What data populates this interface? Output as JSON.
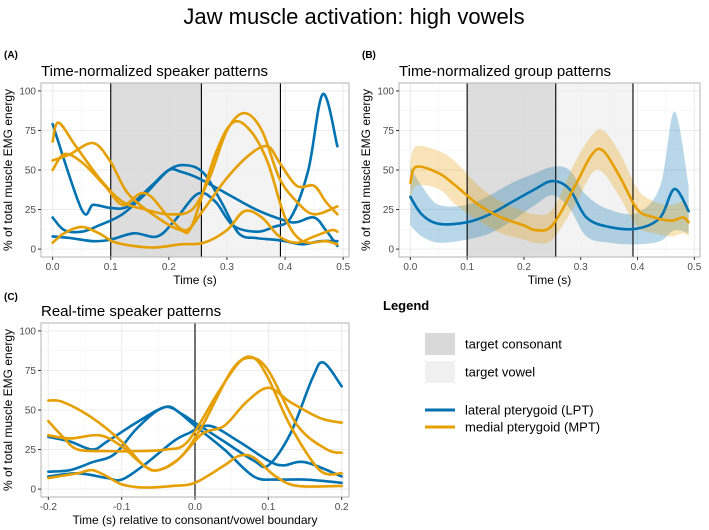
{
  "title": "Jaw muscle activation: high vowels",
  "colors": {
    "lpt": "#0072B2",
    "mpt": "#E69F00",
    "consonant": "#d9d9d9",
    "vowel": "#f0f0f0"
  },
  "legend": {
    "heading": "Legend",
    "items": [
      {
        "label": "target consonant",
        "kind": "fill",
        "color": "#d9d9d9"
      },
      {
        "label": "target vowel",
        "kind": "fill",
        "color": "#f0f0f0"
      },
      {
        "label": "lateral pterygoid (LPT)",
        "kind": "line",
        "color": "#0072B2"
      },
      {
        "label": "medial pterygoid (MPT)",
        "kind": "line",
        "color": "#E69F00"
      }
    ]
  },
  "chart_data": [
    {
      "tag": "(A)",
      "title": "Time-normalized speaker patterns",
      "type": "line",
      "xlabel": "Time (s)",
      "ylabel": "% of total muscle EMG energy",
      "xlim": [
        -0.02,
        0.51
      ],
      "ylim": [
        -5,
        105
      ],
      "xticks": [
        0,
        0.1,
        0.2,
        0.3,
        0.4,
        0.5
      ],
      "xtick_labels": [
        "0.0",
        "0.1",
        "0.2",
        "0.3",
        "0.4",
        "0.5"
      ],
      "yticks": [
        0,
        25,
        50,
        75,
        100
      ],
      "ytick_labels": [
        "0",
        "25",
        "50",
        "75",
        "100"
      ],
      "regions": [
        {
          "name": "target consonant",
          "from": 0.1,
          "to": 0.256
        },
        {
          "name": "target vowel",
          "from": 0.256,
          "to": 0.392
        }
      ],
      "vlines": [
        0.1,
        0.256,
        0.392
      ],
      "series": [
        {
          "muscle": "lpt",
          "x": [
            0,
            0.05,
            0.07,
            0.1,
            0.13,
            0.17,
            0.2,
            0.22,
            0.25,
            0.3,
            0.35,
            0.4,
            0.42,
            0.45,
            0.47,
            0.49
          ],
          "y": [
            79,
            25,
            28,
            26,
            27,
            40,
            50,
            49,
            45,
            35,
            25,
            18,
            17,
            20,
            12,
            2
          ]
        },
        {
          "muscle": "lpt",
          "x": [
            0,
            0.02,
            0.05,
            0.08,
            0.12,
            0.16,
            0.2,
            0.23,
            0.26,
            0.29,
            0.32,
            0.35,
            0.38,
            0.4,
            0.43,
            0.46,
            0.49
          ],
          "y": [
            20,
            12,
            11,
            15,
            22,
            35,
            50,
            53,
            48,
            30,
            10,
            7,
            6,
            5,
            3,
            5,
            5
          ]
        },
        {
          "muscle": "lpt",
          "x": [
            0,
            0.03,
            0.07,
            0.1,
            0.14,
            0.18,
            0.21,
            0.25,
            0.28,
            0.31,
            0.35,
            0.38,
            0.41,
            0.44,
            0.465,
            0.49
          ],
          "y": [
            8,
            7,
            5,
            6,
            10,
            8,
            18,
            35,
            30,
            15,
            11,
            14,
            20,
            50,
            98,
            65
          ]
        },
        {
          "muscle": "mpt",
          "x": [
            0,
            0.01,
            0.04,
            0.08,
            0.12,
            0.16,
            0.2,
            0.24,
            0.27,
            0.3,
            0.33,
            0.36,
            0.39,
            0.42,
            0.45,
            0.49
          ],
          "y": [
            68,
            80,
            65,
            45,
            30,
            25,
            22,
            25,
            45,
            75,
            86,
            75,
            45,
            30,
            22,
            27
          ]
        },
        {
          "muscle": "mpt",
          "x": [
            0,
            0.03,
            0.07,
            0.1,
            0.13,
            0.18,
            0.22,
            0.24,
            0.28,
            0.31,
            0.34,
            0.37,
            0.4,
            0.43,
            0.47,
            0.49
          ],
          "y": [
            56,
            60,
            67,
            55,
            35,
            20,
            12,
            15,
            60,
            80,
            75,
            55,
            20,
            5,
            5,
            3
          ]
        },
        {
          "muscle": "mpt",
          "x": [
            0,
            0.02,
            0.05,
            0.09,
            0.12,
            0.15,
            0.17,
            0.2,
            0.23,
            0.26,
            0.3,
            0.34,
            0.37,
            0.39,
            0.42,
            0.45,
            0.47,
            0.49
          ],
          "y": [
            50,
            60,
            55,
            40,
            28,
            35,
            33,
            20,
            12,
            25,
            45,
            60,
            65,
            55,
            40,
            40,
            30,
            22
          ]
        },
        {
          "muscle": "mpt",
          "x": [
            0,
            0.02,
            0.05,
            0.08,
            0.11,
            0.17,
            0.22,
            0.26,
            0.3,
            0.33,
            0.36,
            0.39,
            0.42,
            0.45,
            0.48,
            0.49
          ],
          "y": [
            4,
            10,
            14,
            10,
            4,
            1,
            3,
            4,
            12,
            24,
            20,
            8,
            4,
            8,
            12,
            11
          ]
        }
      ]
    },
    {
      "tag": "(B)",
      "title": "Time-normalized group patterns",
      "type": "line",
      "xlabel": "Time (s)",
      "ylabel": "% of total muscle EMG energy",
      "xlim": [
        -0.02,
        0.51
      ],
      "ylim": [
        -5,
        105
      ],
      "xticks": [
        0,
        0.1,
        0.2,
        0.3,
        0.4,
        0.5
      ],
      "xtick_labels": [
        "0.0",
        "0.1",
        "0.2",
        "0.3",
        "0.4",
        "0.5"
      ],
      "yticks": [
        0,
        25,
        50,
        75,
        100
      ],
      "ytick_labels": [
        "0",
        "25",
        "50",
        "75",
        "100"
      ],
      "regions": [
        {
          "name": "target consonant",
          "from": 0.1,
          "to": 0.256
        },
        {
          "name": "target vowel",
          "from": 0.256,
          "to": 0.392
        }
      ],
      "vlines": [
        0.1,
        0.256,
        0.392
      ],
      "series": [
        {
          "muscle": "lpt",
          "x": [
            0,
            0.02,
            0.05,
            0.1,
            0.14,
            0.18,
            0.22,
            0.25,
            0.28,
            0.31,
            0.35,
            0.4,
            0.44,
            0.465,
            0.49
          ],
          "y": [
            33,
            22,
            16,
            17,
            22,
            30,
            38,
            43,
            38,
            20,
            14,
            13,
            20,
            38,
            24
          ],
          "lower": [
            15,
            8,
            4,
            6,
            10,
            18,
            28,
            34,
            26,
            8,
            4,
            3,
            5,
            12,
            10
          ],
          "upper": [
            52,
            40,
            28,
            28,
            34,
            42,
            48,
            52,
            50,
            34,
            25,
            23,
            40,
            87,
            40
          ]
        },
        {
          "muscle": "mpt",
          "x": [
            0,
            0.01,
            0.05,
            0.08,
            0.12,
            0.16,
            0.2,
            0.22,
            0.25,
            0.29,
            0.32,
            0.34,
            0.37,
            0.4,
            0.43,
            0.46,
            0.48,
            0.49
          ],
          "y": [
            42,
            52,
            48,
            40,
            28,
            20,
            15,
            12,
            15,
            40,
            60,
            62,
            45,
            25,
            20,
            18,
            20,
            17
          ],
          "lower": [
            30,
            40,
            38,
            28,
            18,
            10,
            6,
            4,
            6,
            28,
            48,
            48,
            32,
            14,
            10,
            8,
            10,
            8
          ],
          "upper": [
            55,
            65,
            62,
            55,
            40,
            30,
            24,
            22,
            25,
            55,
            72,
            75,
            60,
            38,
            30,
            28,
            30,
            27
          ]
        }
      ]
    },
    {
      "tag": "(C)",
      "title": "Real-time speaker patterns",
      "type": "line",
      "xlabel": "Time (s) relative to consonant/vowel boundary",
      "ylabel": "% of total muscle EMG energy",
      "xlim": [
        -0.21,
        0.21
      ],
      "ylim": [
        -5,
        105
      ],
      "xticks": [
        -0.2,
        -0.1,
        0,
        0.1,
        0.2
      ],
      "xtick_labels": [
        "-0.2",
        "-0.1",
        "0.0",
        "0.1",
        "0.2"
      ],
      "yticks": [
        0,
        25,
        50,
        75,
        100
      ],
      "ytick_labels": [
        "0",
        "25",
        "50",
        "75",
        "100"
      ],
      "regions": [],
      "vlines": [
        0
      ],
      "series": [
        {
          "muscle": "lpt",
          "x": [
            -0.2,
            -0.17,
            -0.14,
            -0.12,
            -0.08,
            -0.04,
            -0.02,
            0,
            0.04,
            0.08,
            0.1,
            0.13,
            0.16,
            0.175,
            0.2
          ],
          "y": [
            33,
            30,
            25,
            30,
            42,
            52,
            48,
            42,
            30,
            18,
            15,
            35,
            70,
            80,
            65
          ]
        },
        {
          "muscle": "lpt",
          "x": [
            -0.2,
            -0.17,
            -0.14,
            -0.11,
            -0.08,
            -0.05,
            -0.03,
            0,
            0.04,
            0.08,
            0.11,
            0.15,
            0.2
          ],
          "y": [
            11,
            12,
            17,
            22,
            38,
            50,
            51,
            40,
            25,
            8,
            6,
            6,
            4
          ]
        },
        {
          "muscle": "lpt",
          "x": [
            -0.2,
            -0.16,
            -0.12,
            -0.1,
            -0.07,
            -0.03,
            -0.01,
            0.02,
            0.06,
            0.1,
            0.12,
            0.15,
            0.2
          ],
          "y": [
            8,
            10,
            7,
            6,
            15,
            30,
            35,
            40,
            30,
            18,
            15,
            17,
            8
          ]
        },
        {
          "muscle": "mpt",
          "x": [
            -0.2,
            -0.18,
            -0.14,
            -0.1,
            -0.07,
            -0.05,
            -0.02,
            0.01,
            0.05,
            0.075,
            0.1,
            0.14,
            0.18,
            0.2
          ],
          "y": [
            56,
            55,
            45,
            30,
            15,
            12,
            20,
            40,
            75,
            83,
            75,
            40,
            25,
            23
          ]
        },
        {
          "muscle": "mpt",
          "x": [
            -0.2,
            -0.18,
            -0.16,
            -0.12,
            -0.08,
            -0.04,
            -0.01,
            0.03,
            0.06,
            0.08,
            0.1,
            0.13,
            0.17,
            0.2
          ],
          "y": [
            43,
            33,
            25,
            24,
            24,
            25,
            30,
            60,
            80,
            83,
            70,
            40,
            12,
            10
          ]
        },
        {
          "muscle": "mpt",
          "x": [
            -0.2,
            -0.17,
            -0.13,
            -0.1,
            -0.07,
            -0.05,
            -0.02,
            0.01,
            0.04,
            0.07,
            0.1,
            0.13,
            0.17,
            0.2
          ],
          "y": [
            34,
            32,
            34,
            27,
            15,
            12,
            20,
            35,
            40,
            55,
            64,
            55,
            45,
            42
          ]
        },
        {
          "muscle": "mpt",
          "x": [
            -0.2,
            -0.16,
            -0.14,
            -0.12,
            -0.1,
            -0.07,
            -0.03,
            0,
            0.04,
            0.06,
            0.08,
            0.11,
            0.14,
            0.2
          ],
          "y": [
            7,
            10,
            12,
            8,
            3,
            1,
            2,
            4,
            15,
            21,
            20,
            8,
            2,
            2
          ]
        }
      ]
    }
  ]
}
